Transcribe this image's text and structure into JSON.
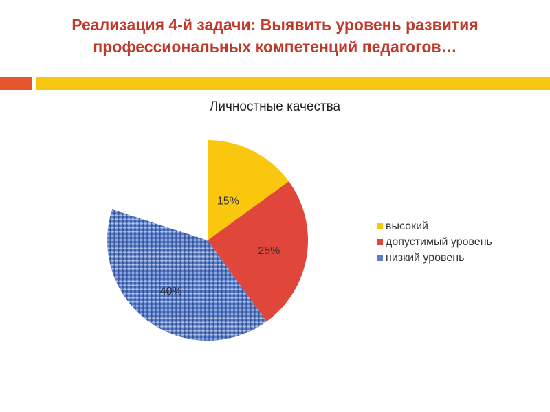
{
  "slide": {
    "title_line1": "Реализация 4-й задачи: Выявить уровень развития",
    "title_line2": "профессиональных компетенций педагогов…",
    "title_color": "#c0392b",
    "divider_left_color": "#e4552f",
    "divider_right_color": "#f7c710"
  },
  "chart_data": {
    "type": "pie",
    "title": "Личностные качества",
    "legend_position": "right",
    "slices": [
      {
        "name": "высокий",
        "value": 15,
        "label": "15%",
        "color": "#f9c80e"
      },
      {
        "name": "допустимый уровень",
        "value": 25,
        "label": "25%",
        "color": "#e0463a"
      },
      {
        "name": "низкий уровень",
        "value": 40,
        "label": "40%",
        "color": "#5b7fc7"
      }
    ]
  }
}
